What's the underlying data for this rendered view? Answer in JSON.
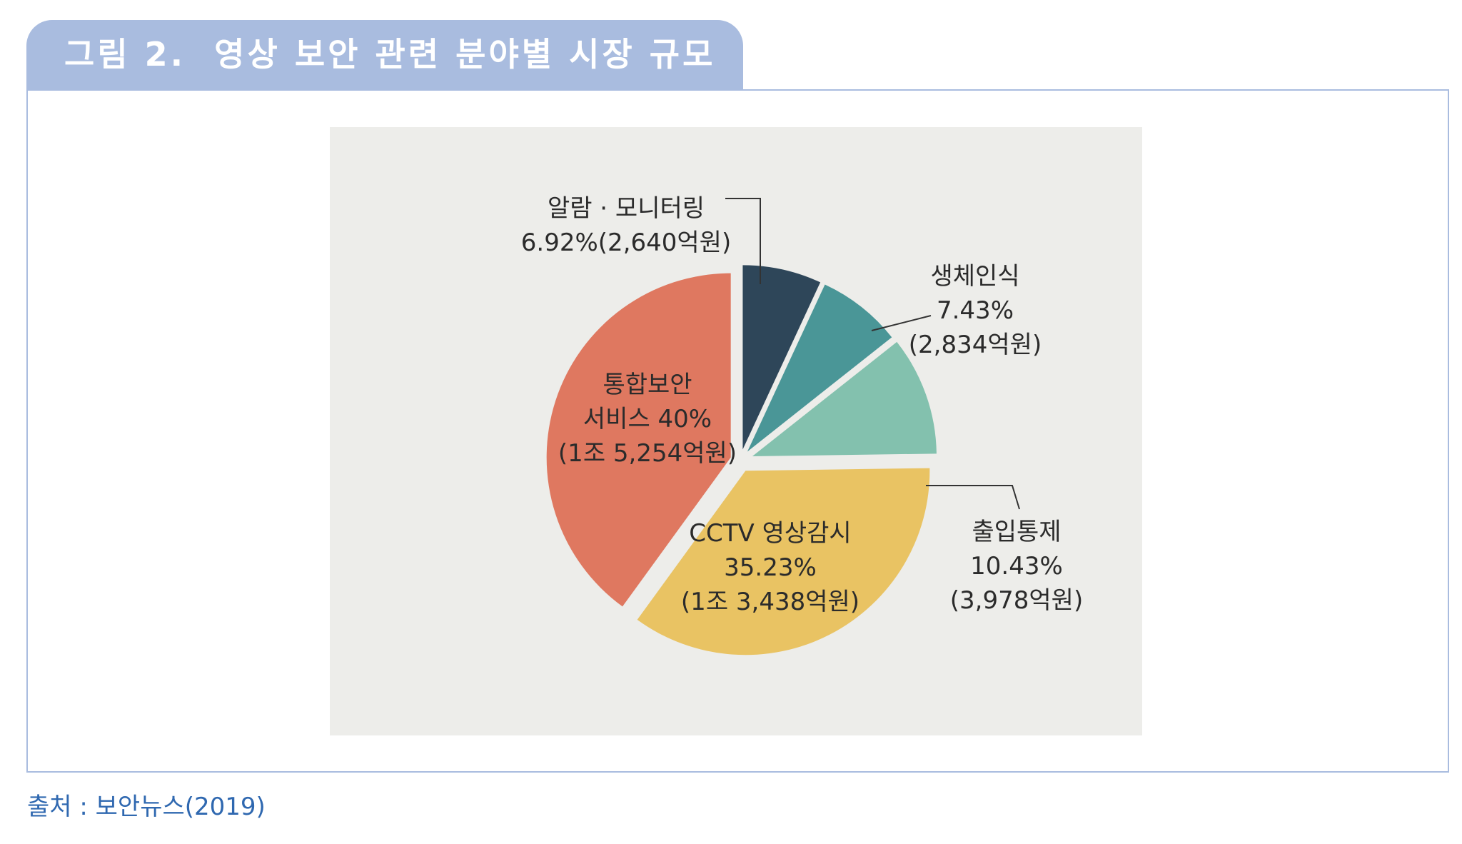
{
  "figure": {
    "title": "그림 2.  영상 보안 관련 분야별 시장 규모",
    "source": "출처 : 보안뉴스(2019)"
  },
  "chart_data": {
    "type": "pie",
    "title": "",
    "unit": "%",
    "slices": [
      {
        "label": "알람 · 모니터링",
        "value": 6.92,
        "amount": "2,640억원",
        "color": "#2e4659",
        "text_lines": [
          "알람 · 모니터링",
          "6.92%(2,640억원)"
        ]
      },
      {
        "label": "생체인식",
        "value": 7.43,
        "amount": "2,834억원",
        "color": "#4a9697",
        "text_lines": [
          "생체인식",
          "7.43%",
          "(2,834억원)"
        ]
      },
      {
        "label": "출입통제",
        "value": 10.43,
        "amount": "3,978억원",
        "color": "#83c1ae",
        "text_lines": [
          "출입통제",
          "10.43%",
          "(3,978억원)"
        ]
      },
      {
        "label": "CCTV 영상감시",
        "value": 35.23,
        "amount": "1조 3,438억원",
        "color": "#e9c363",
        "text_lines": [
          "CCTV 영상감시",
          "35.23%",
          "(1조 3,438억원)"
        ]
      },
      {
        "label": "통합보안 서비스",
        "value": 40,
        "amount": "1조 5,254억원",
        "color": "#df7860",
        "text_lines": [
          "통합보안",
          "서비스 40%",
          "(1조 5,254억원)"
        ]
      }
    ]
  }
}
